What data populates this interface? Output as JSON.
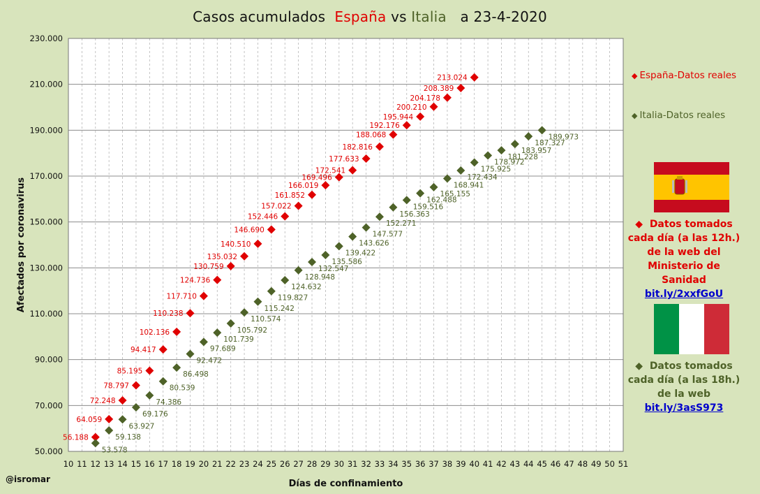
{
  "title": {
    "part1": "Casos acumulados",
    "espana": "España",
    "vs": "vs",
    "italia": "Italia",
    "date": "a 23-4-2020"
  },
  "credit": "@isromar",
  "legend": {
    "espana": {
      "marker": "◆",
      "label": "España-Datos reales"
    },
    "italia": {
      "marker": "◆",
      "label": "Italia-Datos reales"
    }
  },
  "notes": {
    "espana": {
      "marker": "◆",
      "line1": "Datos tomados",
      "line2": "cada día (a las 12h.)",
      "line3": "de la web del",
      "line4": "Ministerio de Sanidad",
      "link": "bit.ly/2xxfGoU"
    },
    "italia": {
      "marker": "◆",
      "line1": "Datos tomados",
      "line2": "cada día (a las 18h.)",
      "line3": "de la web",
      "link": "bit.ly/3asS973"
    }
  },
  "colors": {
    "espana": "#e00000",
    "italia": "#4e6228",
    "background": "#d8e4bc",
    "plot": "#ffffff"
  },
  "chart_data": {
    "type": "scatter",
    "xlabel": "Días de confinamiento",
    "ylabel": "Afectados por coronavirus",
    "xlim": [
      10,
      51
    ],
    "ylim": [
      50000,
      230000
    ],
    "yticks": [
      50000,
      70000,
      90000,
      110000,
      130000,
      150000,
      170000,
      190000,
      210000,
      230000
    ],
    "ytick_labels": [
      "50.000",
      "70.000",
      "90.000",
      "110.000",
      "130.000",
      "150.000",
      "170.000",
      "190.000",
      "210.000",
      "230.000"
    ],
    "grid": true,
    "legend_position": "right",
    "series": [
      {
        "name": "España-Datos reales",
        "color": "#e00000",
        "x": [
          12,
          13,
          14,
          15,
          16,
          17,
          18,
          19,
          20,
          21,
          22,
          23,
          24,
          25,
          26,
          27,
          28,
          29,
          30,
          31,
          32,
          33,
          34,
          35,
          36,
          37,
          38,
          39,
          40
        ],
        "values": [
          56188,
          64059,
          72248,
          78797,
          85195,
          94417,
          102136,
          110238,
          117710,
          124736,
          130759,
          135032,
          140510,
          146690,
          152446,
          157022,
          161852,
          166019,
          169496,
          172541,
          177633,
          182816,
          188068,
          192176,
          195944,
          200210,
          204178,
          208389,
          213024
        ],
        "labels": [
          "56.188",
          "64.059",
          "72.248",
          "78.797",
          "85.195",
          "94.417",
          "102.136",
          "110.238",
          "117.710",
          "124.736",
          "130.759",
          "135.032",
          "140.510",
          "146.690",
          "152.446",
          "157.022",
          "161.852",
          "166.019",
          "169.496",
          "172.541",
          "177.633",
          "182.816",
          "188.068",
          "192.176",
          "195.944",
          "200.210",
          "204.178",
          "208.389",
          "213.024"
        ]
      },
      {
        "name": "Italia-Datos reales",
        "color": "#4e6228",
        "x": [
          12,
          13,
          14,
          15,
          16,
          17,
          18,
          19,
          20,
          21,
          22,
          23,
          24,
          25,
          26,
          27,
          28,
          29,
          30,
          31,
          32,
          33,
          34,
          35,
          36,
          37,
          38,
          39,
          40,
          41,
          42,
          43,
          44,
          45
        ],
        "values": [
          53578,
          59138,
          63927,
          69176,
          74386,
          80539,
          86498,
          92472,
          97689,
          101739,
          105792,
          110574,
          115242,
          119827,
          124632,
          128948,
          132547,
          135586,
          139422,
          143626,
          147577,
          152271,
          156363,
          159516,
          162488,
          165155,
          168941,
          172434,
          175925,
          178972,
          181228,
          183957,
          187327,
          189973
        ],
        "labels": [
          "53.578",
          "59.138",
          "63.927",
          "69.176",
          "74.386",
          "80.539",
          "86.498",
          "92.472",
          "97.689",
          "101.739",
          "105.792",
          "110.574",
          "115.242",
          "119.827",
          "124.632",
          "128.948",
          "132.547",
          "135.586",
          "139.422",
          "143.626",
          "147.577",
          "152.271",
          "156.363",
          "159.516",
          "162.488",
          "165.155",
          "168.941",
          "172.434",
          "175.925",
          "178.972",
          "181.228",
          "183.957",
          "187.327",
          "189.973"
        ]
      }
    ]
  }
}
